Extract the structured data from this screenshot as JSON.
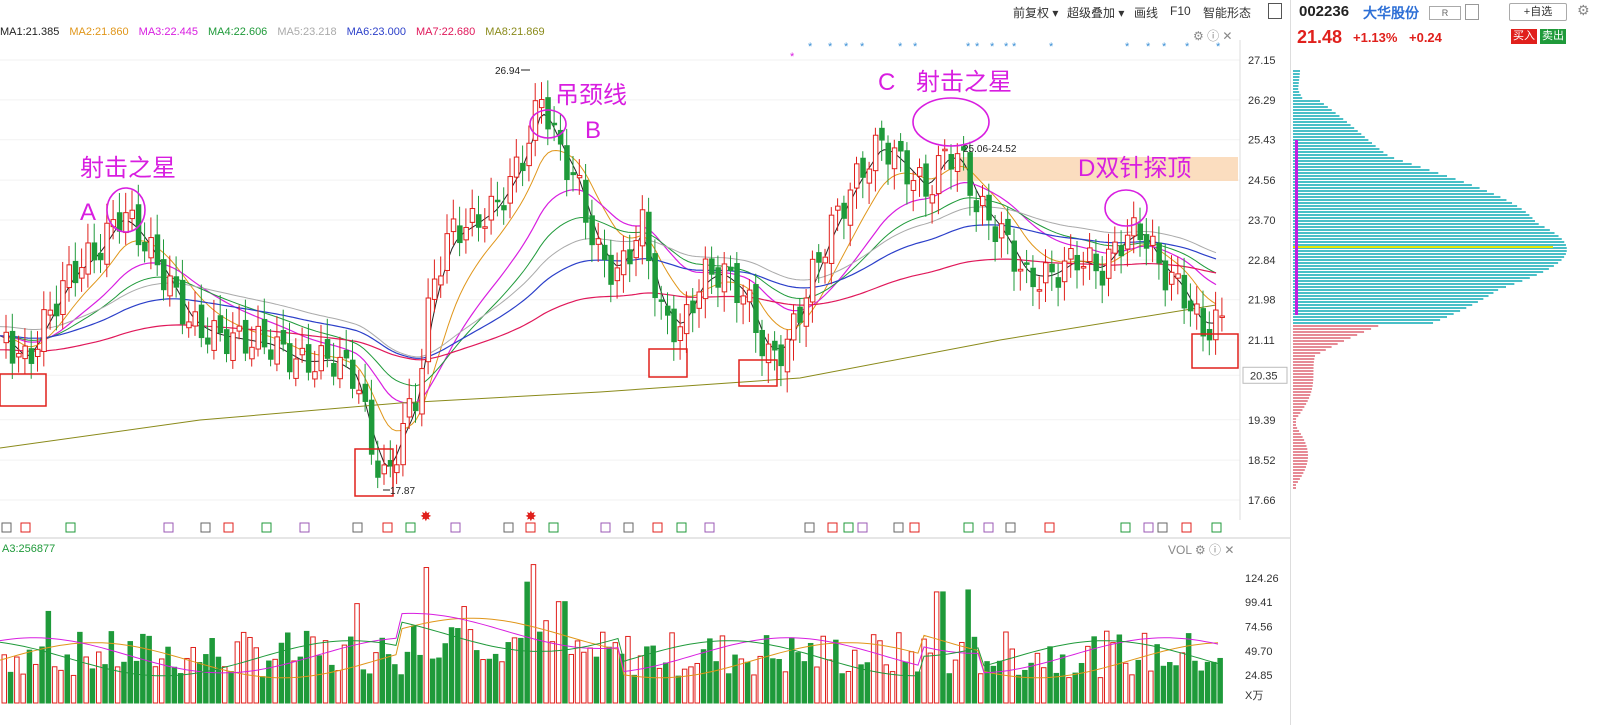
{
  "toolbar": {
    "restore": "前复权",
    "overlay": "超级叠加",
    "draw": "画线",
    "f10": "F10",
    "smart": "智能形态"
  },
  "ma_legend": [
    {
      "label": "MA1:21.385",
      "color": "#222222"
    },
    {
      "label": "MA2:21.860",
      "color": "#e0961a"
    },
    {
      "label": "MA3:22.445",
      "color": "#d81ee0"
    },
    {
      "label": "MA4:22.606",
      "color": "#1f9a3a"
    },
    {
      "label": "MA5:23.218",
      "color": "#aaaaaa"
    },
    {
      "label": "MA6:23.000",
      "color": "#2b3fc9"
    },
    {
      "label": "MA7:22.680",
      "color": "#e0185a"
    },
    {
      "label": "MA8:21.869",
      "color": "#8a8a1a"
    }
  ],
  "vol_legend": "A3:256877",
  "vol_title": "VOL",
  "price_axis": [
    "27.15",
    "26.29",
    "25.43",
    "24.56",
    "23.70",
    "22.84",
    "21.98",
    "21.11",
    "20.35",
    "19.39",
    "18.52",
    "17.66"
  ],
  "vol_axis": [
    "124.26",
    "99.41",
    "74.56",
    "49.70",
    "24.85"
  ],
  "vol_unit": "X万",
  "current_price_tag": "20.35",
  "annotations": {
    "a_text": "射击之星",
    "a_letter": "A",
    "b_text": "吊颈线",
    "b_letter": "B",
    "c_letter": "C",
    "c_text": "射击之星",
    "d_text": "D双针探顶",
    "high_label": "26.94",
    "low_label": "17.87",
    "range_label": "25.06-24.52"
  },
  "stock": {
    "code": "002236",
    "name": "大华股份",
    "r_badge": "R",
    "watch": "+自选",
    "price": "21.48",
    "pct": "+1.13%",
    "chg": "+0.24",
    "buy": "买入",
    "sell": "卖出"
  },
  "colors": {
    "up": "#e0201c",
    "down": "#1f9a3a",
    "annotation": "#d81ee0",
    "box": "#e0201c",
    "band": "#fbd9b8",
    "profile_up": "#49bfc7",
    "profile_down": "#e68a95",
    "profile_line": "#e6e600"
  }
}
